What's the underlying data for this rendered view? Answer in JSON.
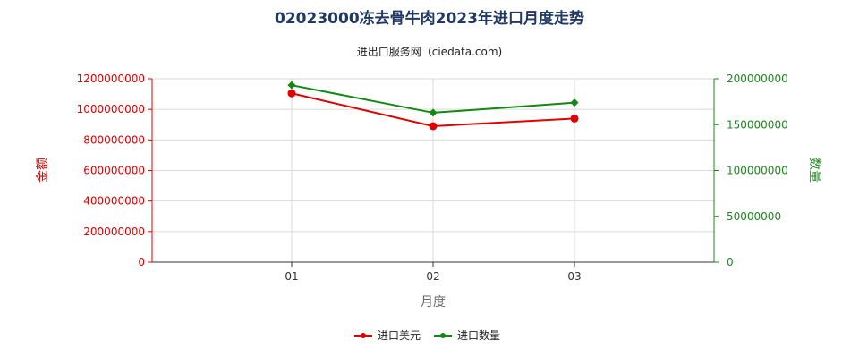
{
  "chart_data": {
    "type": "line",
    "title": "02023000冻去骨牛肉2023年进口月度走势",
    "subtitle": "进出口服务网（ciedata.com)",
    "categories": [
      "01",
      "02",
      "03"
    ],
    "xlabel": "月度",
    "ylabel_left": "金额",
    "ylabel_right": "数量",
    "ylim_left": [
      0,
      1200000000
    ],
    "ylim_right": [
      0,
      200000000
    ],
    "yticks_left": [
      "0",
      "200000000",
      "400000000",
      "600000000",
      "800000000",
      "1000000000",
      "1200000000"
    ],
    "yticks_right": [
      "0",
      "50000000",
      "100000000",
      "150000000",
      "200000000"
    ],
    "grid": true,
    "legend_position": "bottom",
    "series": [
      {
        "name": "进口美元",
        "axis": "left",
        "color": "#e00000",
        "marker": "circle",
        "values": [
          1105000000,
          890000000,
          940000000
        ]
      },
      {
        "name": "进口数量",
        "axis": "right",
        "color": "#118811",
        "marker": "diamond",
        "values": [
          193000000,
          163000000,
          174000000
        ]
      }
    ]
  }
}
